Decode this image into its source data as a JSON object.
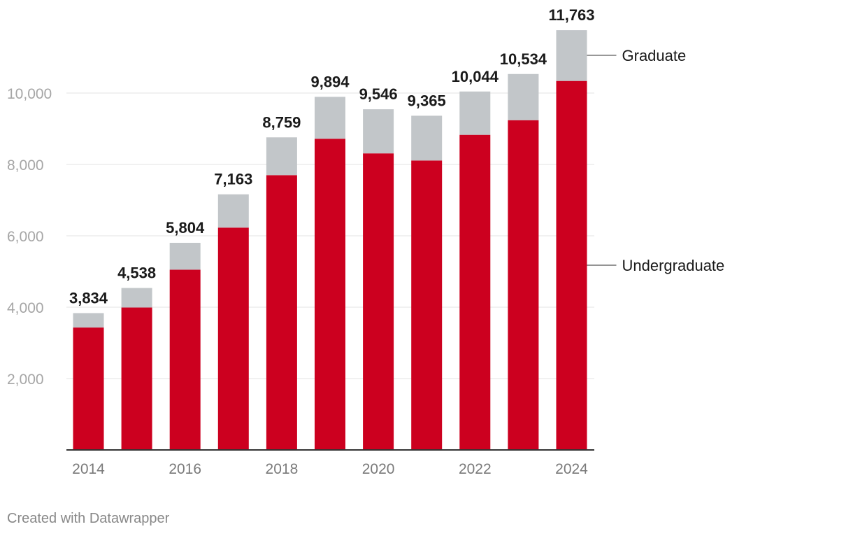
{
  "chart_data": {
    "type": "bar",
    "stacked": true,
    "categories": [
      "2014",
      "2015",
      "2016",
      "2017",
      "2018",
      "2019",
      "2020",
      "2021",
      "2022",
      "2023",
      "2024"
    ],
    "x_tick_labels": [
      "2014",
      "",
      "2016",
      "",
      "2018",
      "",
      "2020",
      "",
      "2022",
      "",
      "2024"
    ],
    "series": [
      {
        "name": "Undergraduate",
        "color": "#cc001f",
        "values": [
          3430,
          3990,
          5050,
          6230,
          7700,
          8720,
          8310,
          8110,
          8830,
          9240,
          10340
        ]
      },
      {
        "name": "Graduate",
        "color": "#c2c6c9",
        "values": [
          404,
          548,
          754,
          933,
          1059,
          1174,
          1236,
          1255,
          1214,
          1294,
          1423
        ]
      }
    ],
    "totals": [
      "3,834",
      "4,538",
      "5,804",
      "7,163",
      "8,759",
      "9,894",
      "9,546",
      "9,365",
      "10,044",
      "10,534",
      "11,763"
    ],
    "y_ticks": [
      {
        "value": 2000,
        "label": "2,000"
      },
      {
        "value": 4000,
        "label": "4,000"
      },
      {
        "value": 6000,
        "label": "6,000"
      },
      {
        "value": 8000,
        "label": "8,000"
      },
      {
        "value": 10000,
        "label": "10,000"
      }
    ],
    "ylim": [
      0,
      12000
    ],
    "legend": [
      {
        "label": "Graduate",
        "series": "Graduate"
      },
      {
        "label": "Undergraduate",
        "series": "Undergraduate"
      }
    ],
    "legend_placement": "right",
    "grid": true,
    "title": "",
    "xlabel": "",
    "ylabel": ""
  },
  "footer": {
    "credit": "Created with Datawrapper"
  }
}
